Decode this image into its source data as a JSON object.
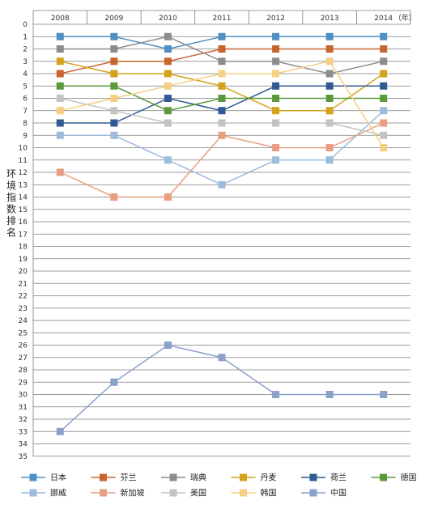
{
  "chart_data": {
    "type": "line",
    "title": "",
    "ylabel": "环境指数排名",
    "x_unit": "（年）",
    "x_tick_labels": [
      "2008",
      "2009",
      "2010",
      "2011",
      "2012",
      "2013",
      "2014"
    ],
    "y_ticks": [
      0,
      1,
      2,
      3,
      4,
      5,
      6,
      7,
      8,
      9,
      10,
      11,
      12,
      13,
      14,
      15,
      16,
      17,
      18,
      19,
      20,
      21,
      22,
      23,
      24,
      25,
      26,
      27,
      28,
      29,
      30,
      31,
      32,
      33,
      34,
      35
    ],
    "ylim": [
      0,
      35
    ],
    "y_inverted": true,
    "grid": "horizontal",
    "legend_position": "bottom",
    "series": [
      {
        "name": "日本",
        "color": "#4f8fc4",
        "values": [
          1,
          1,
          2,
          1,
          1,
          1,
          1
        ]
      },
      {
        "name": "芬兰",
        "color": "#c8642e",
        "values": [
          4,
          3,
          3,
          2,
          2,
          2,
          2
        ]
      },
      {
        "name": "瑞典",
        "color": "#8c8c8c",
        "values": [
          2,
          2,
          1,
          3,
          3,
          4,
          3
        ]
      },
      {
        "name": "丹麦",
        "color": "#d4a21c",
        "values": [
          3,
          4,
          4,
          5,
          7,
          7,
          4
        ]
      },
      {
        "name": "荷兰",
        "color": "#2f5a93",
        "values": [
          8,
          8,
          6,
          7,
          5,
          5,
          5
        ]
      },
      {
        "name": "德国",
        "color": "#5b9a3a",
        "values": [
          5,
          5,
          7,
          6,
          6,
          6,
          6
        ]
      },
      {
        "name": "挪威",
        "color": "#9dbbdc",
        "values": [
          9,
          9,
          11,
          13,
          11,
          11,
          7
        ]
      },
      {
        "name": "新加坡",
        "color": "#e89e80",
        "values": [
          12,
          14,
          14,
          9,
          10,
          10,
          8
        ]
      },
      {
        "name": "美国",
        "color": "#c3c3c3",
        "values": [
          6,
          7,
          8,
          8,
          8,
          8,
          9
        ]
      },
      {
        "name": "韩国",
        "color": "#f5cf84",
        "values": [
          7,
          6,
          5,
          4,
          4,
          3,
          10
        ]
      },
      {
        "name": "中国",
        "color": "#8aa1c9",
        "values": [
          33,
          29,
          26,
          27,
          30,
          30,
          30
        ]
      }
    ]
  }
}
